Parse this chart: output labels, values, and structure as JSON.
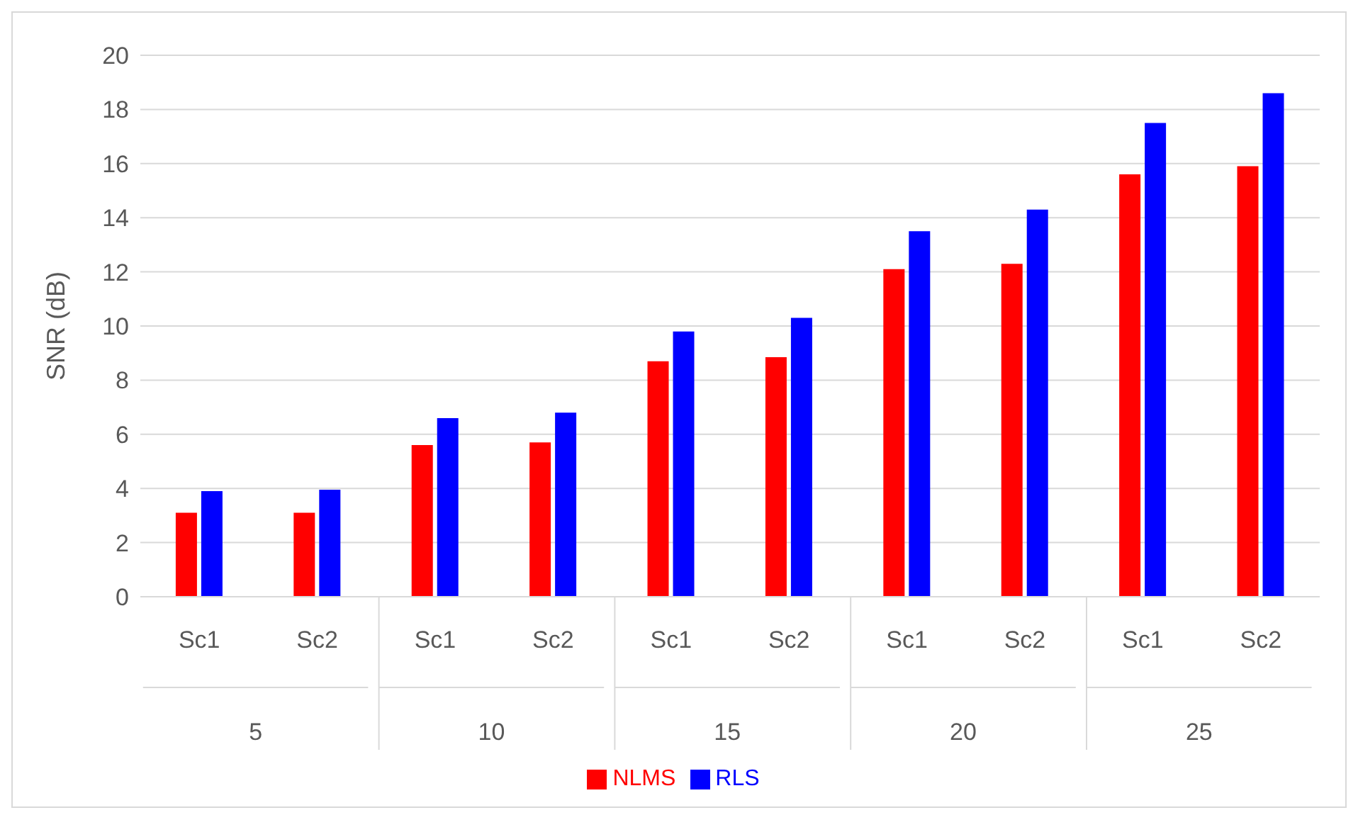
{
  "chart_data": {
    "type": "bar",
    "ylabel": "SNR (dB)",
    "categories": [
      "Sc1",
      "Sc2",
      "Sc1",
      "Sc2",
      "Sc1",
      "Sc2",
      "Sc1",
      "Sc2",
      "Sc1",
      "Sc2"
    ],
    "annotations": [
      "5",
      "10",
      "15",
      "20",
      "25"
    ],
    "series": [
      {
        "name": "NLMS",
        "color": "#ff0000",
        "values": [
          3.1,
          3.1,
          5.6,
          5.7,
          8.7,
          8.85,
          12.1,
          12.3,
          15.6,
          15.9
        ]
      },
      {
        "name": "RLS",
        "color": "#0000ff",
        "values": [
          3.9,
          3.95,
          6.6,
          6.8,
          9.8,
          10.3,
          13.5,
          14.3,
          17.5,
          18.6
        ]
      }
    ],
    "ylim": [
      0,
      20
    ],
    "yticks": [
      0,
      2,
      4,
      6,
      8,
      10,
      12,
      14,
      16,
      18,
      20
    ],
    "grid": "y",
    "legend": "bottom"
  }
}
